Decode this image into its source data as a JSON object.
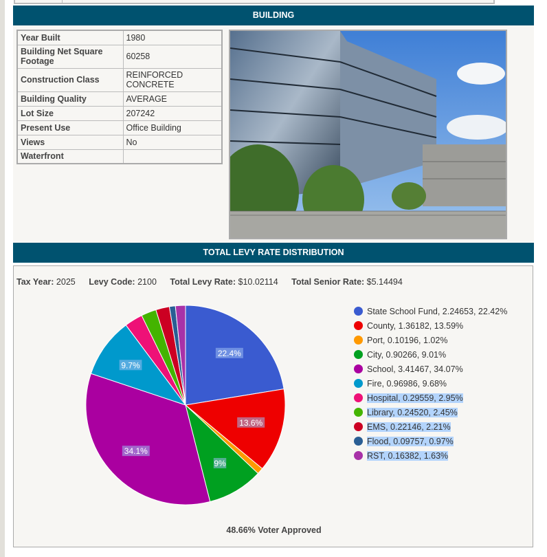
{
  "building": {
    "title": "BUILDING",
    "rows": [
      {
        "label": "Year Built",
        "value": "1980"
      },
      {
        "label": "Building Net Square Footage",
        "value": "60258"
      },
      {
        "label": "Construction Class",
        "value": "REINFORCED CONCRETE"
      },
      {
        "label": "Building Quality",
        "value": "AVERAGE"
      },
      {
        "label": "Lot Size",
        "value": "207242"
      },
      {
        "label": "Present Use",
        "value": "Office Building"
      },
      {
        "label": "Views",
        "value": "No"
      },
      {
        "label": "Waterfront",
        "value": ""
      }
    ]
  },
  "levy": {
    "title": "TOTAL LEVY RATE DISTRIBUTION",
    "tax_year_label": "Tax Year:",
    "tax_year": "2025",
    "levy_code_label": "Levy Code:",
    "levy_code": "2100",
    "total_levy_label": "Total Levy Rate:",
    "total_levy": "$10.02114",
    "senior_label": "Total Senior Rate:",
    "senior": "$5.14494",
    "voter_approved": "48.66% Voter Approved"
  },
  "chart_data": {
    "type": "pie",
    "start": "top, clockwise",
    "slices": [
      {
        "name": "State School Fund",
        "rate": 2.24653,
        "percent": 22.42,
        "label": "22.4%",
        "color": "#3a5bd0",
        "legend": "State School Fund, 2.24653, 22.42%"
      },
      {
        "name": "County",
        "rate": 1.36182,
        "percent": 13.59,
        "label": "13.6%",
        "color": "#ee0000",
        "legend": "County, 1.36182, 13.59%"
      },
      {
        "name": "Port",
        "rate": 0.10196,
        "percent": 1.02,
        "label": "",
        "color": "#ff9900",
        "legend": "Port, 0.10196, 1.02%"
      },
      {
        "name": "City",
        "rate": 0.90266,
        "percent": 9.01,
        "label": "9%",
        "color": "#00a020",
        "legend": "City, 0.90266, 9.01%"
      },
      {
        "name": "School",
        "rate": 3.41467,
        "percent": 34.07,
        "label": "34.1%",
        "color": "#aa00a0",
        "legend": "School, 3.41467, 34.07%"
      },
      {
        "name": "Fire",
        "rate": 0.96986,
        "percent": 9.68,
        "label": "9.7%",
        "color": "#0099cc",
        "legend": "Fire, 0.96986, 9.68%"
      },
      {
        "name": "Hospital",
        "rate": 0.29559,
        "percent": 2.95,
        "label": "",
        "color": "#ee1177",
        "legend": "Hospital, 0.29559, 2.95%",
        "selected": true
      },
      {
        "name": "Library",
        "rate": 0.2452,
        "percent": 2.45,
        "label": "",
        "color": "#44b400",
        "legend": "Library, 0.24520, 2.45%",
        "selected": true
      },
      {
        "name": "EMS",
        "rate": 0.22146,
        "percent": 2.21,
        "label": "",
        "color": "#cc0022",
        "legend": "EMS, 0.22146, 2.21%",
        "selected": true
      },
      {
        "name": "Flood",
        "rate": 0.09757,
        "percent": 0.97,
        "label": "",
        "color": "#2a5e94",
        "legend": "Flood, 0.09757, 0.97%",
        "selected": true
      },
      {
        "name": "RST",
        "rate": 0.16382,
        "percent": 1.63,
        "label": "",
        "color": "#a832a8",
        "legend": "RST, 0.16382, 1.63%",
        "selected": true
      }
    ]
  }
}
